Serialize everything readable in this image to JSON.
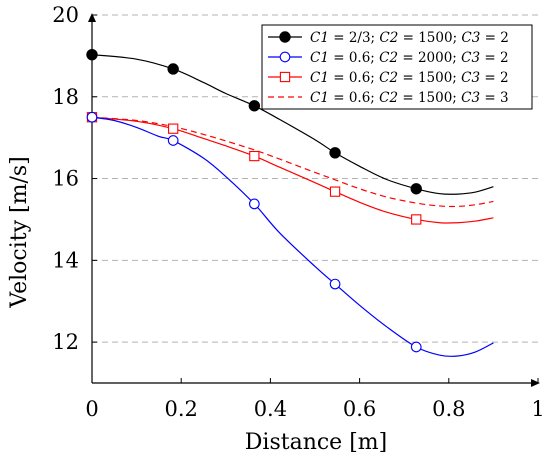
{
  "chart_data": {
    "type": "line",
    "title": "",
    "xlabel": "Distance [m]",
    "ylabel": "Velocity [m/s]",
    "xlim": [
      0,
      1
    ],
    "ylim": [
      11,
      20
    ],
    "x_ticks": [
      "0",
      "0.2",
      "0.4",
      "0.6",
      "0.8",
      "1"
    ],
    "x_tick_values": [
      0,
      0.2,
      0.4,
      0.6,
      0.8,
      1
    ],
    "y_ticks": [
      "12",
      "14",
      "16",
      "18",
      "20"
    ],
    "y_tick_values": [
      12,
      14,
      16,
      18,
      20
    ],
    "grid": "horizontal dashed",
    "legend_position": "top-right",
    "series": [
      {
        "name": "C1 = 2/3; C2 = 1500; C3 = 2",
        "legend_parts": [
          [
            "C1",
            "it"
          ],
          [
            " = 2/3; ",
            ""
          ],
          [
            "C2",
            "it"
          ],
          [
            " = 1500; ",
            ""
          ],
          [
            "C3",
            "it"
          ],
          [
            " = 2",
            ""
          ]
        ],
        "color": "#000000",
        "marker": "filled-circle",
        "line_style": "solid",
        "x": [
          0,
          0.1,
          0.182,
          0.25,
          0.3,
          0.364,
          0.42,
          0.5,
          0.545,
          0.6,
          0.66,
          0.727,
          0.78,
          0.82,
          0.86,
          0.9
        ],
        "y": [
          19.03,
          18.92,
          18.68,
          18.35,
          18.08,
          17.78,
          17.45,
          16.95,
          16.63,
          16.3,
          15.98,
          15.75,
          15.63,
          15.62,
          15.67,
          15.8
        ],
        "marker_x": [
          0,
          0.182,
          0.364,
          0.545,
          0.727
        ],
        "marker_y": [
          19.03,
          18.68,
          17.78,
          16.63,
          15.75
        ]
      },
      {
        "name": "C1 = 0.6; C2 = 2000; C3 = 2",
        "legend_parts": [
          [
            "C1",
            "it"
          ],
          [
            " = 0.6; ",
            ""
          ],
          [
            "C2",
            "it"
          ],
          [
            " = 2000; ",
            ""
          ],
          [
            "C3",
            "it"
          ],
          [
            " = 2",
            ""
          ]
        ],
        "color": "#0000ff",
        "marker": "open-circle",
        "line_style": "solid",
        "x": [
          0,
          0.05,
          0.1,
          0.15,
          0.182,
          0.25,
          0.3,
          0.364,
          0.42,
          0.5,
          0.545,
          0.6,
          0.66,
          0.727,
          0.78,
          0.82,
          0.86,
          0.9
        ],
        "y": [
          17.5,
          17.42,
          17.25,
          17.03,
          16.93,
          16.5,
          16.05,
          15.38,
          14.68,
          13.85,
          13.42,
          12.9,
          12.38,
          11.88,
          11.68,
          11.66,
          11.76,
          11.98
        ],
        "marker_x": [
          0,
          0.182,
          0.364,
          0.545,
          0.727
        ],
        "marker_y": [
          17.5,
          16.93,
          15.38,
          13.42,
          11.88
        ]
      },
      {
        "name": "C1 = 0.6; C2 = 1500; C3 = 2",
        "legend_parts": [
          [
            "C1",
            "it"
          ],
          [
            " = 0.6; ",
            ""
          ],
          [
            "C2",
            "it"
          ],
          [
            " = 1500; ",
            ""
          ],
          [
            "C3",
            "it"
          ],
          [
            " = 2",
            ""
          ]
        ],
        "color": "#ff0000",
        "marker": "open-square",
        "line_style": "solid",
        "x": [
          0,
          0.1,
          0.182,
          0.25,
          0.3,
          0.364,
          0.42,
          0.5,
          0.545,
          0.6,
          0.66,
          0.727,
          0.78,
          0.82,
          0.86,
          0.9
        ],
        "y": [
          17.5,
          17.4,
          17.22,
          16.98,
          16.8,
          16.55,
          16.28,
          15.9,
          15.68,
          15.42,
          15.18,
          15.0,
          14.92,
          14.92,
          14.96,
          15.04
        ],
        "marker_x": [
          0,
          0.182,
          0.364,
          0.545,
          0.727
        ],
        "marker_y": [
          17.5,
          17.22,
          16.55,
          15.68,
          15.0
        ]
      },
      {
        "name": "C1 = 0.6; C2 = 1500; C3 = 3",
        "legend_parts": [
          [
            "C1",
            "it"
          ],
          [
            " = 0.6; ",
            ""
          ],
          [
            "C2",
            "it"
          ],
          [
            " = 1500; ",
            ""
          ],
          [
            "C3",
            "it"
          ],
          [
            " = 3",
            ""
          ]
        ],
        "color": "#ff0000",
        "marker": "none",
        "line_style": "dashed",
        "x": [
          0,
          0.1,
          0.182,
          0.25,
          0.3,
          0.364,
          0.42,
          0.5,
          0.545,
          0.6,
          0.66,
          0.727,
          0.78,
          0.82,
          0.86,
          0.9
        ],
        "y": [
          17.5,
          17.42,
          17.27,
          17.08,
          16.92,
          16.7,
          16.48,
          16.15,
          15.97,
          15.75,
          15.55,
          15.4,
          15.33,
          15.32,
          15.36,
          15.44
        ],
        "marker_x": [],
        "marker_y": []
      }
    ]
  }
}
